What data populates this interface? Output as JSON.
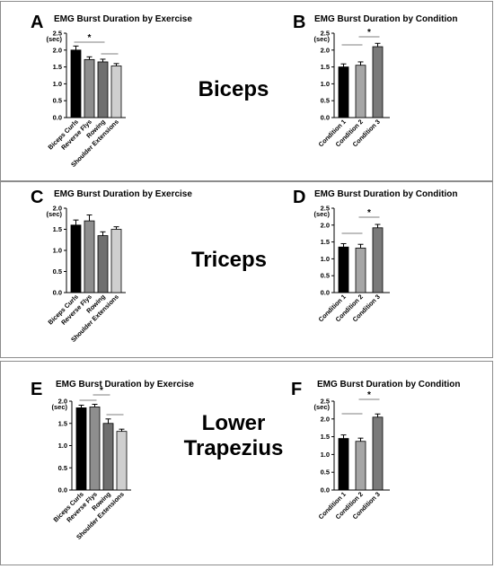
{
  "rows": [
    {
      "muscle_lines": [
        "Biceps"
      ]
    },
    {
      "muscle_lines": [
        "Triceps"
      ]
    },
    {
      "muscle_lines": [
        "Lower",
        "Trapezius"
      ]
    }
  ],
  "chart_data": [
    {
      "panel": "A",
      "type": "bar",
      "title": "EMG Burst Duration by Exercise",
      "unit_label": "(sec)",
      "ylim": [
        0,
        2.5
      ],
      "yticks": [
        "0.0",
        "0.5",
        "1.0",
        "1.5",
        "2.0",
        "2.5"
      ],
      "categories": [
        "Biceps Curls",
        "Reverse Flys",
        "Rowing",
        "Shoulder Extensions"
      ],
      "values": [
        2.0,
        1.72,
        1.65,
        1.53
      ],
      "errors": [
        0.12,
        0.08,
        0.08,
        0.07
      ],
      "colors": [
        "#000000",
        "#8e8e8e",
        "#6f6f6f",
        "#cfcfcf"
      ],
      "significance": [
        {
          "from": 0,
          "to": 2,
          "label": "*"
        },
        {
          "from": 2,
          "to": 3,
          "label": ""
        }
      ]
    },
    {
      "panel": "B",
      "type": "bar",
      "title": "EMG Burst Duration by Condition",
      "unit_label": "(sec)",
      "ylim": [
        0,
        2.5
      ],
      "yticks": [
        "0.0",
        "0.5",
        "1.0",
        "1.5",
        "2.0",
        "2.5"
      ],
      "categories": [
        "Condition 1",
        "Condition 2",
        "Condition 3"
      ],
      "values": [
        1.5,
        1.55,
        2.1
      ],
      "errors": [
        0.09,
        0.1,
        0.1
      ],
      "colors": [
        "#000000",
        "#a6a6a6",
        "#7a7a7a"
      ],
      "significance": [
        {
          "from": 0,
          "to": 1,
          "label": ""
        },
        {
          "from": 1,
          "to": 2,
          "label": "*"
        }
      ]
    },
    {
      "panel": "C",
      "type": "bar",
      "title": "EMG Burst Duration by Exercise",
      "unit_label": "(sec)",
      "ylim": [
        0,
        2.0
      ],
      "yticks": [
        "0.0",
        "0.5",
        "1.0",
        "1.5",
        "2.0"
      ],
      "categories": [
        "Biceps Curls",
        "Reverse Flys",
        "Rowing",
        "Shoulder Extensions"
      ],
      "values": [
        1.6,
        1.7,
        1.35,
        1.5
      ],
      "errors": [
        0.12,
        0.14,
        0.09,
        0.06
      ],
      "colors": [
        "#000000",
        "#8e8e8e",
        "#6f6f6f",
        "#cfcfcf"
      ],
      "significance": []
    },
    {
      "panel": "D",
      "type": "bar",
      "title": "EMG Burst Duration by Condition",
      "unit_label": "(sec)",
      "ylim": [
        0,
        2.5
      ],
      "yticks": [
        "0.0",
        "0.5",
        "1.0",
        "1.5",
        "2.0",
        "2.5"
      ],
      "categories": [
        "Condition 1",
        "Condition 2",
        "Condition 3"
      ],
      "values": [
        1.35,
        1.32,
        1.92
      ],
      "errors": [
        0.1,
        0.11,
        0.1
      ],
      "colors": [
        "#000000",
        "#a6a6a6",
        "#7a7a7a"
      ],
      "significance": [
        {
          "from": 0,
          "to": 1,
          "label": ""
        },
        {
          "from": 1,
          "to": 2,
          "label": "*"
        }
      ]
    },
    {
      "panel": "E",
      "type": "bar",
      "title": "EMG Burst Duration by Exercise",
      "unit_label": "(sec)",
      "ylim": [
        0,
        2.0
      ],
      "yticks": [
        "0.0",
        "0.5",
        "1.0",
        "1.5",
        "2.0"
      ],
      "categories": [
        "Biceps Curls",
        "Reverse Flys",
        "Rowing",
        "Shoulder Extensions"
      ],
      "values": [
        1.85,
        1.87,
        1.5,
        1.32
      ],
      "errors": [
        0.06,
        0.06,
        0.1,
        0.05
      ],
      "colors": [
        "#000000",
        "#8e8e8e",
        "#6f6f6f",
        "#cfcfcf"
      ],
      "significance": [
        {
          "from": 0,
          "to": 1,
          "label": ""
        },
        {
          "from": 1,
          "to": 2,
          "label": "*"
        },
        {
          "from": 2,
          "to": 3,
          "label": ""
        }
      ]
    },
    {
      "panel": "F",
      "type": "bar",
      "title": "EMG Burst Duration by Condition",
      "unit_label": "(sec)",
      "ylim": [
        0,
        2.5
      ],
      "yticks": [
        "0.0",
        "0.5",
        "1.0",
        "1.5",
        "2.0",
        "2.5"
      ],
      "categories": [
        "Condition 1",
        "Condition 2",
        "Condition 3"
      ],
      "values": [
        1.45,
        1.37,
        2.05
      ],
      "errors": [
        0.1,
        0.09,
        0.09
      ],
      "colors": [
        "#000000",
        "#a6a6a6",
        "#7a7a7a"
      ],
      "significance": [
        {
          "from": 0,
          "to": 1,
          "label": ""
        },
        {
          "from": 1,
          "to": 2,
          "label": "*"
        }
      ]
    }
  ]
}
